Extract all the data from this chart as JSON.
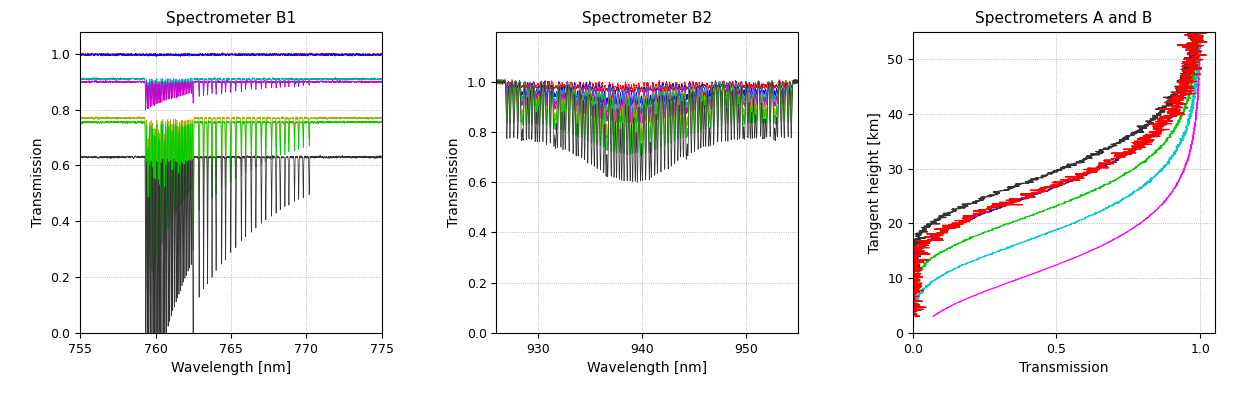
{
  "title_b1": "Spectrometer B1",
  "title_b2": "Spectrometer B2",
  "title_ab": "Spectrometers A and B",
  "xlabel_b1": "Wavelength [nm]",
  "xlabel_b2": "Wavelength [nm]",
  "xlabel_ab": "Transmission",
  "ylabel_b1": "Transmission",
  "ylabel_b2": "Transmission",
  "ylabel_ab": "Tangent height [km]",
  "b1_xlim": [
    755,
    775
  ],
  "b1_ylim": [
    0,
    1.08
  ],
  "b1_xticks": [
    755,
    760,
    765,
    770,
    775
  ],
  "b1_yticks": [
    0,
    0.2,
    0.4,
    0.6,
    0.8,
    1.0
  ],
  "b2_xlim": [
    926,
    955
  ],
  "b2_ylim": [
    0,
    1.2
  ],
  "b2_xticks": [
    930,
    940,
    950
  ],
  "b2_yticks": [
    0,
    0.2,
    0.4,
    0.6,
    0.8,
    1.0
  ],
  "ab_xlim": [
    0,
    1.05
  ],
  "ab_ylim": [
    0,
    55
  ],
  "ab_xticks": [
    0,
    0.5,
    1.0
  ],
  "ab_yticks": [
    0,
    10,
    20,
    30,
    40,
    50
  ],
  "b1_baselines": [
    0.998,
    0.997,
    0.91,
    0.9,
    0.77,
    0.755,
    0.63
  ],
  "b1_abs_depths": [
    0.002,
    0.002,
    0.08,
    0.1,
    0.5,
    0.6,
    0.95
  ],
  "b1_colors": [
    "#ff0000",
    "#0000ff",
    "#00aaaa",
    "#cc00cc",
    "#aaaa00",
    "#00cc00",
    "#333333"
  ],
  "b2_baselines": [
    1.0,
    1.0,
    1.0,
    1.0,
    1.0,
    1.0,
    1.0
  ],
  "b2_abs_depths": [
    0.02,
    0.05,
    0.07,
    0.09,
    0.13,
    0.16,
    0.22
  ],
  "b2_colors": [
    "#ff0000",
    "#0000ff",
    "#00aaaa",
    "#cc00cc",
    "#aaaa00",
    "#00cc00",
    "#333333"
  ],
  "ab_colors": [
    "#ff00ff",
    "#00cccc",
    "#00cc00",
    "#0000cc",
    "#333333",
    "#ff0000"
  ],
  "ab_tau_scales": [
    2.0,
    5.0,
    7.0,
    10.0,
    13.0,
    16.0
  ],
  "ab_h_starts": [
    5.0,
    5.0,
    7.0,
    8.0,
    9.0,
    5.0
  ],
  "ab_noise_scales": [
    0.002,
    0.005,
    0.005,
    0.005,
    0.015,
    0.03
  ],
  "background": "#ffffff"
}
